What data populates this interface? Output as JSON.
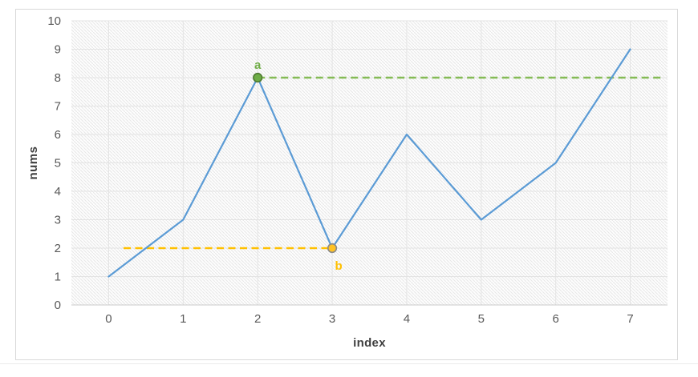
{
  "chart_data": {
    "type": "line",
    "title": "",
    "xlabel": "index",
    "ylabel": "nums",
    "x": [
      0,
      1,
      2,
      3,
      4,
      5,
      6,
      7
    ],
    "x_ticks": [
      "0",
      "1",
      "2",
      "3",
      "4",
      "5",
      "6",
      "7"
    ],
    "y_ticks": [
      "0",
      "1",
      "2",
      "3",
      "4",
      "5",
      "6",
      "7",
      "8",
      "9",
      "10"
    ],
    "ylim": [
      0,
      10
    ],
    "grid": true,
    "legend": "none",
    "plot_background": "diagonal-hatch",
    "series": [
      {
        "name": "nums",
        "color": "#5B9BD5",
        "values": [
          1,
          3,
          8,
          2,
          6,
          3,
          5,
          9
        ]
      }
    ],
    "annotations": [
      {
        "label": "a",
        "type": "dashed-hline",
        "y": 8,
        "x_start": 2,
        "x_end": 7.42,
        "line_color": "#84BB55",
        "label_color": "#70AD47",
        "label_position": "above-marker",
        "marker": {
          "x": 2,
          "y": 8,
          "fill": "#6EAD46",
          "stroke": "#4F7A32"
        }
      },
      {
        "label": "b",
        "type": "dashed-hline",
        "y": 2,
        "x_start": 0.2,
        "x_end": 3,
        "line_color": "#FFC000",
        "label_color": "#FFC000",
        "label_position": "below-marker",
        "marker": {
          "x": 3,
          "y": 2,
          "fill": "#FFC224",
          "stroke": "#8A8A8A"
        }
      }
    ],
    "style": {
      "tick_color": "#595959",
      "axis_title_color": "#3F3F3F",
      "grid_color": "#E3E3E3",
      "axis_line_color": "#C9C9C9",
      "hatch_color": "#E7E7E7",
      "plot_fill": "#FDFDFD",
      "frame_border": "#D9D9D9"
    }
  }
}
